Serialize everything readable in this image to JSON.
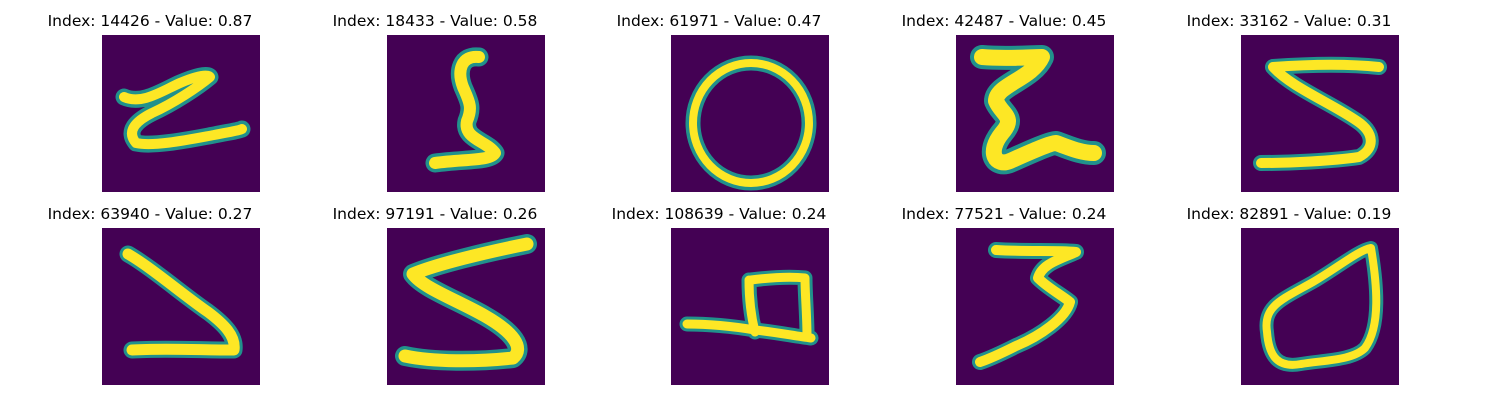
{
  "cells": [
    {
      "index": "14426",
      "value": "0.87",
      "title": "Index: 14426 - Value: 0.87",
      "glyph": "z-swirl"
    },
    {
      "index": "18433",
      "value": "0.58",
      "title": "Index: 18433 - Value: 0.58",
      "glyph": "s"
    },
    {
      "index": "61971",
      "value": "0.47",
      "title": "Index: 61971 - Value: 0.47",
      "glyph": "o"
    },
    {
      "index": "42487",
      "value": "0.45",
      "title": "Index: 42487 - Value: 0.45",
      "glyph": "e-blob"
    },
    {
      "index": "33162",
      "value": "0.31",
      "title": "Index: 33162 - Value: 0.31",
      "glyph": "s-wide"
    },
    {
      "index": "63940",
      "value": "0.27",
      "title": "Index: 63940 - Value: 0.27",
      "glyph": "v-hook"
    },
    {
      "index": "97191",
      "value": "0.26",
      "title": "Index: 97191 - Value: 0.26",
      "glyph": "s-bold"
    },
    {
      "index": "108639",
      "value": "0.24",
      "title": "Index: 108639 - Value: 0.24",
      "glyph": "b"
    },
    {
      "index": "77521",
      "value": "0.24",
      "title": "Index: 77521 - Value: 0.24",
      "glyph": "3"
    },
    {
      "index": "82891",
      "value": "0.19",
      "title": "Index: 82891 - Value: 0.19",
      "glyph": "0"
    }
  ],
  "colors": {
    "background": "#440154",
    "stroke_outer": "#21918c",
    "stroke_inner": "#fde725"
  }
}
